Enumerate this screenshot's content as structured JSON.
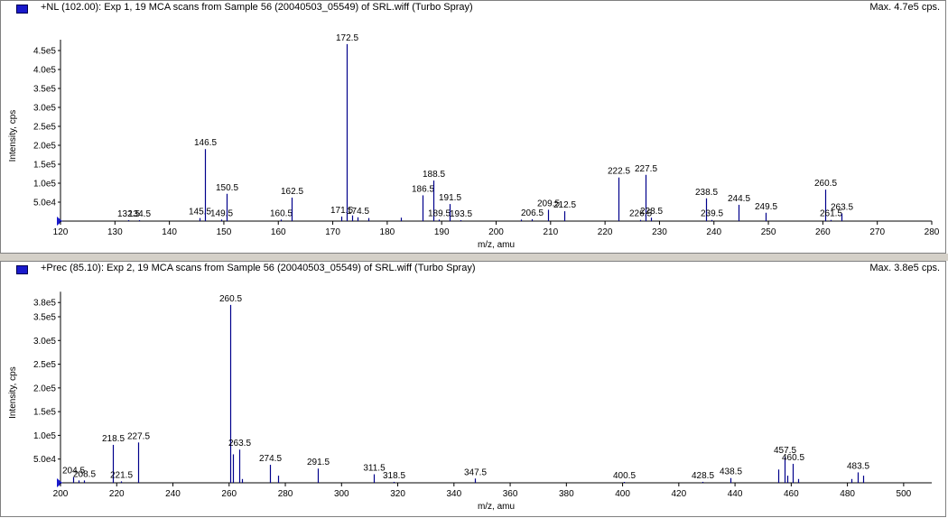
{
  "colors": {
    "peak": "#00008b",
    "axis": "#000000",
    "label": "#000000",
    "icon": "#1a1acc"
  },
  "panels": [
    {
      "title": "+NL (102.00): Exp 1, 19 MCA scans from Sample 56 (20040503_05549) of SRL.wiff (Turbo Spray)",
      "max": "Max. 4.7e5 cps."
    },
    {
      "title": "+Prec (85.10): Exp 2, 19 MCA scans from Sample 56 (20040503_05549) of SRL.wiff (Turbo Spray)",
      "max": "Max. 3.8e5 cps."
    }
  ],
  "chart_data": [
    {
      "type": "bar",
      "xlabel": "m/z, amu",
      "ylabel": "Intensity, cps",
      "xlim": [
        120,
        280
      ],
      "xticks": [
        120,
        130,
        140,
        150,
        160,
        170,
        180,
        190,
        200,
        210,
        220,
        230,
        240,
        250,
        260,
        270,
        280
      ],
      "yticks": [
        {
          "v": 50000,
          "label": "5.0e4"
        },
        {
          "v": 100000,
          "label": "1.0e5"
        },
        {
          "v": 150000,
          "label": "1.5e5"
        },
        {
          "v": 200000,
          "label": "2.0e5"
        },
        {
          "v": 250000,
          "label": "2.5e5"
        },
        {
          "v": 300000,
          "label": "3.0e5"
        },
        {
          "v": 350000,
          "label": "3.5e5"
        },
        {
          "v": 400000,
          "label": "4.0e5"
        },
        {
          "v": 450000,
          "label": "4.5e5"
        }
      ],
      "peaks": [
        {
          "x": 132.5,
          "y": 1000,
          "label": "132.5"
        },
        {
          "x": 134.5,
          "y": 1000,
          "label": "134.5"
        },
        {
          "x": 145.5,
          "y": 8000,
          "label": "145.5"
        },
        {
          "x": 146.5,
          "y": 190000,
          "label": "146.5"
        },
        {
          "x": 149.5,
          "y": 4000,
          "label": "149.5"
        },
        {
          "x": 150.5,
          "y": 72000,
          "label": "150.5"
        },
        {
          "x": 160.5,
          "y": 4000,
          "label": "160.5"
        },
        {
          "x": 162.5,
          "y": 62000,
          "label": "162.5"
        },
        {
          "x": 171.5,
          "y": 12000,
          "label": "171.5"
        },
        {
          "x": 172.5,
          "y": 467000,
          "label": "172.5"
        },
        {
          "x": 173.5,
          "y": 15000,
          "label": ""
        },
        {
          "x": 174.5,
          "y": 10000,
          "label": "174.5"
        },
        {
          "x": 176.5,
          "y": 8000,
          "label": ""
        },
        {
          "x": 182.5,
          "y": 9000,
          "label": ""
        },
        {
          "x": 186.5,
          "y": 68000,
          "label": "186.5"
        },
        {
          "x": 188.5,
          "y": 107000,
          "label": "188.5"
        },
        {
          "x": 189.5,
          "y": 4000,
          "label": "189.5"
        },
        {
          "x": 191.5,
          "y": 45000,
          "label": "191.5"
        },
        {
          "x": 193.5,
          "y": 2000,
          "label": "193.5"
        },
        {
          "x": 204.5,
          "y": 4000,
          "label": ""
        },
        {
          "x": 206.5,
          "y": 5000,
          "label": "206.5"
        },
        {
          "x": 209.5,
          "y": 30000,
          "label": "209.5"
        },
        {
          "x": 212.5,
          "y": 26000,
          "label": "212.5"
        },
        {
          "x": 222.5,
          "y": 115000,
          "label": "222.5"
        },
        {
          "x": 226.5,
          "y": 3000,
          "label": "226.5"
        },
        {
          "x": 227.5,
          "y": 122000,
          "label": "227.5"
        },
        {
          "x": 228.5,
          "y": 9000,
          "label": "228.5"
        },
        {
          "x": 238.5,
          "y": 60000,
          "label": "238.5"
        },
        {
          "x": 239.5,
          "y": 3000,
          "label": "239.5"
        },
        {
          "x": 244.5,
          "y": 43000,
          "label": "244.5"
        },
        {
          "x": 249.5,
          "y": 22000,
          "label": "249.5"
        },
        {
          "x": 260.5,
          "y": 83000,
          "label": "260.5"
        },
        {
          "x": 261.5,
          "y": 3000,
          "label": "261.5"
        },
        {
          "x": 263.5,
          "y": 20000,
          "label": "263.5"
        }
      ]
    },
    {
      "type": "bar",
      "xlabel": "m/z, amu",
      "ylabel": "Intensity, cps",
      "xlim": [
        200,
        510
      ],
      "xticks": [
        200,
        220,
        240,
        260,
        280,
        300,
        320,
        340,
        360,
        380,
        400,
        420,
        440,
        460,
        480,
        500
      ],
      "yticks": [
        {
          "v": 50000,
          "label": "5.0e4"
        },
        {
          "v": 100000,
          "label": "1.0e5"
        },
        {
          "v": 150000,
          "label": "1.5e5"
        },
        {
          "v": 200000,
          "label": "2.0e5"
        },
        {
          "v": 250000,
          "label": "2.5e5"
        },
        {
          "v": 300000,
          "label": "3.0e5"
        },
        {
          "v": 350000,
          "label": "3.5e5"
        },
        {
          "v": 380000,
          "label": "3.8e5"
        }
      ],
      "peaks": [
        {
          "x": 204.5,
          "y": 12000,
          "label": "204.5"
        },
        {
          "x": 206.5,
          "y": 5000,
          "label": ""
        },
        {
          "x": 208.5,
          "y": 5000,
          "label": "208.5"
        },
        {
          "x": 218.5,
          "y": 80000,
          "label": "218.5"
        },
        {
          "x": 221.5,
          "y": 3000,
          "label": "221.5"
        },
        {
          "x": 227.5,
          "y": 85000,
          "label": "227.5"
        },
        {
          "x": 260.5,
          "y": 375000,
          "label": "260.5"
        },
        {
          "x": 261.5,
          "y": 60000,
          "label": ""
        },
        {
          "x": 263.5,
          "y": 70000,
          "label": "263.5"
        },
        {
          "x": 264.5,
          "y": 8000,
          "label": ""
        },
        {
          "x": 274.5,
          "y": 38000,
          "label": "274.5"
        },
        {
          "x": 277.5,
          "y": 15000,
          "label": ""
        },
        {
          "x": 291.5,
          "y": 30000,
          "label": "291.5"
        },
        {
          "x": 311.5,
          "y": 18000,
          "label": "311.5"
        },
        {
          "x": 318.5,
          "y": 2000,
          "label": "318.5"
        },
        {
          "x": 347.5,
          "y": 9000,
          "label": "347.5"
        },
        {
          "x": 400.5,
          "y": 1000,
          "label": "400.5"
        },
        {
          "x": 428.5,
          "y": 2000,
          "label": "428.5"
        },
        {
          "x": 438.5,
          "y": 10000,
          "label": "438.5"
        },
        {
          "x": 455.5,
          "y": 28000,
          "label": ""
        },
        {
          "x": 457.5,
          "y": 55000,
          "label": "457.5"
        },
        {
          "x": 458.5,
          "y": 15000,
          "label": ""
        },
        {
          "x": 460.5,
          "y": 40000,
          "label": "460.5"
        },
        {
          "x": 462.5,
          "y": 8000,
          "label": ""
        },
        {
          "x": 481.5,
          "y": 8000,
          "label": ""
        },
        {
          "x": 483.5,
          "y": 22000,
          "label": "483.5"
        },
        {
          "x": 485.5,
          "y": 15000,
          "label": ""
        }
      ]
    }
  ]
}
